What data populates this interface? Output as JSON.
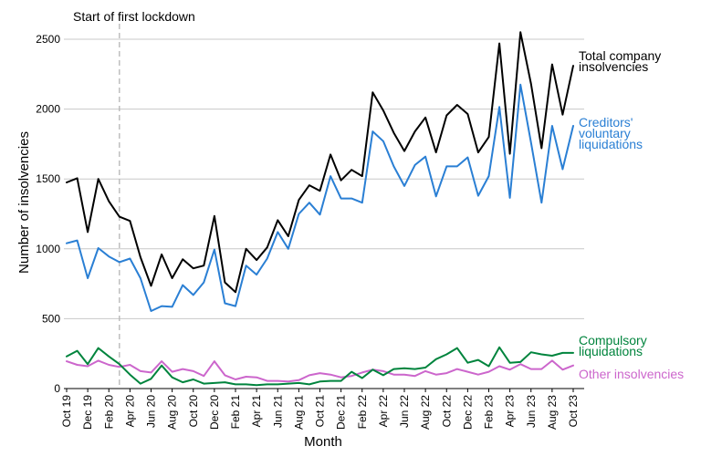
{
  "chart_data": {
    "type": "line",
    "xlabel": "Month",
    "ylabel": "Number of insolvencies",
    "ylim": [
      0,
      2600
    ],
    "yticks": [
      0,
      500,
      1000,
      1500,
      2000,
      2500
    ],
    "grid": "horizontal",
    "x": [
      "Oct 19",
      "Nov 19",
      "Dec 19",
      "Jan 20",
      "Feb 20",
      "Mar 20",
      "Apr 20",
      "May 20",
      "Jun 20",
      "Jul 20",
      "Aug 20",
      "Sep 20",
      "Oct 20",
      "Nov 20",
      "Dec 20",
      "Jan 21",
      "Feb 21",
      "Mar 21",
      "Apr 21",
      "May 21",
      "Jun 21",
      "Jul 21",
      "Aug 21",
      "Sep 21",
      "Oct 21",
      "Nov 21",
      "Dec 21",
      "Jan 22",
      "Feb 22",
      "Mar 22",
      "Apr 22",
      "May 22",
      "Jun 22",
      "Jul 22",
      "Aug 22",
      "Sep 22",
      "Oct 22",
      "Nov 22",
      "Dec 22",
      "Jan 23",
      "Feb 23",
      "Mar 23",
      "Apr 23",
      "May 23",
      "Jun 23",
      "Jul 23",
      "Aug 23",
      "Sep 23",
      "Oct 23"
    ],
    "x_tick_labels": [
      "Oct 19",
      "Dec 19",
      "Feb 20",
      "Apr 20",
      "Jun 20",
      "Aug 20",
      "Oct 20",
      "Dec 20",
      "Feb 21",
      "Apr 21",
      "Jun 21",
      "Aug 21",
      "Oct 21",
      "Dec 21",
      "Feb 22",
      "Apr 22",
      "Jun 22",
      "Aug 22",
      "Oct 22",
      "Dec 22",
      "Feb 23",
      "Apr 23",
      "Jun 23",
      "Aug 23",
      "Oct 23"
    ],
    "annotation": {
      "label": "Start of first lockdown",
      "x": "Mar 20"
    },
    "series": [
      {
        "name": "Total company insolvencies",
        "color": "#000000",
        "values": [
          1475,
          1505,
          1120,
          1500,
          1340,
          1230,
          1200,
          940,
          735,
          960,
          790,
          925,
          860,
          880,
          1235,
          760,
          690,
          1000,
          920,
          1010,
          1205,
          1090,
          1350,
          1455,
          1415,
          1675,
          1490,
          1565,
          1520,
          2120,
          1990,
          1830,
          1700,
          1840,
          1940,
          1690,
          1955,
          2030,
          1965,
          1690,
          1800,
          2470,
          1680,
          2550,
          2180,
          1720,
          2320,
          1960,
          2310
        ]
      },
      {
        "name": "Creditors' voluntary liquidations",
        "color": "#2a7fd4",
        "values": [
          1040,
          1060,
          790,
          1005,
          945,
          905,
          930,
          790,
          555,
          590,
          585,
          740,
          670,
          760,
          995,
          610,
          590,
          880,
          815,
          930,
          1120,
          1000,
          1250,
          1330,
          1245,
          1520,
          1360,
          1360,
          1330,
          1840,
          1770,
          1590,
          1450,
          1600,
          1660,
          1375,
          1590,
          1590,
          1655,
          1380,
          1520,
          2015,
          1365,
          2175,
          1760,
          1330,
          1880,
          1570,
          1880
        ]
      },
      {
        "name": "Compulsory liquidations",
        "color": "#00843d",
        "values": [
          230,
          270,
          175,
          290,
          230,
          175,
          100,
          35,
          70,
          165,
          80,
          45,
          65,
          35,
          40,
          45,
          30,
          30,
          25,
          30,
          30,
          35,
          40,
          30,
          50,
          55,
          55,
          120,
          75,
          135,
          95,
          140,
          145,
          140,
          150,
          210,
          245,
          290,
          185,
          205,
          160,
          295,
          185,
          190,
          260,
          245,
          235,
          255,
          255
        ]
      },
      {
        "name": "Other insolvencies",
        "color": "#cc66cc",
        "values": [
          195,
          170,
          160,
          200,
          170,
          155,
          170,
          125,
          115,
          195,
          120,
          140,
          125,
          90,
          195,
          95,
          65,
          85,
          80,
          55,
          55,
          50,
          60,
          95,
          110,
          100,
          80,
          90,
          115,
          135,
          125,
          100,
          100,
          90,
          125,
          100,
          110,
          140,
          120,
          100,
          120,
          160,
          135,
          175,
          140,
          140,
          200,
          135,
          165
        ]
      }
    ],
    "series_labels": [
      {
        "lines": [
          "Total company",
          "insolvencies"
        ]
      },
      {
        "lines": [
          "Creditors'",
          "voluntary",
          "liquidations"
        ]
      },
      {
        "lines": [
          "Compulsory",
          "liquidations"
        ]
      },
      {
        "lines": [
          "Other insolvencies"
        ]
      }
    ]
  }
}
